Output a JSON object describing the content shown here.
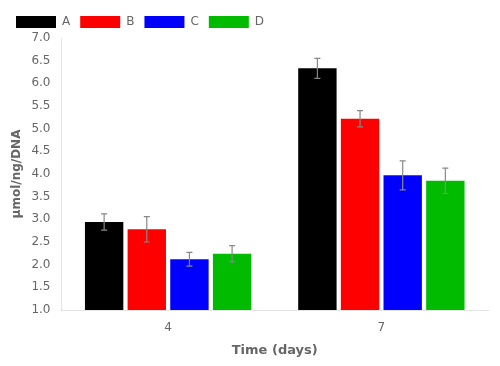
{
  "chart_data": {
    "type": "bar",
    "xlabel": "Time (days)",
    "ylabel": "μmol/ng/DNA",
    "categories": [
      "4",
      "7"
    ],
    "series": [
      {
        "name": "A",
        "color": "#000000",
        "values": [
          2.94,
          6.33
        ],
        "errors": [
          0.18,
          0.22
        ]
      },
      {
        "name": "B",
        "color": "#ff0000",
        "values": [
          2.78,
          5.22
        ],
        "errors": [
          0.28,
          0.18
        ]
      },
      {
        "name": "C",
        "color": "#0000ff",
        "values": [
          2.12,
          3.97
        ],
        "errors": [
          0.15,
          0.32
        ]
      },
      {
        "name": "D",
        "color": "#00bb00",
        "values": [
          2.24,
          3.85
        ],
        "errors": [
          0.18,
          0.28
        ]
      }
    ],
    "ylim": [
      1.0,
      7.0
    ],
    "yticks": [
      {
        "value": 1.0,
        "label": "1.0"
      },
      1.5,
      {
        "value": 2.0,
        "label": "2.0"
      },
      2.5,
      {
        "value": 3.0,
        "label": "3.0"
      },
      3.5,
      {
        "value": 4.0,
        "label": "4.0"
      },
      4.5,
      {
        "value": 5.0,
        "label": "5.0"
      },
      5.5,
      {
        "value": 6.0,
        "label": "6.0"
      },
      6.5,
      {
        "value": 7.0,
        "label": "7.0"
      }
    ],
    "grid": false,
    "legend": "upper left"
  }
}
